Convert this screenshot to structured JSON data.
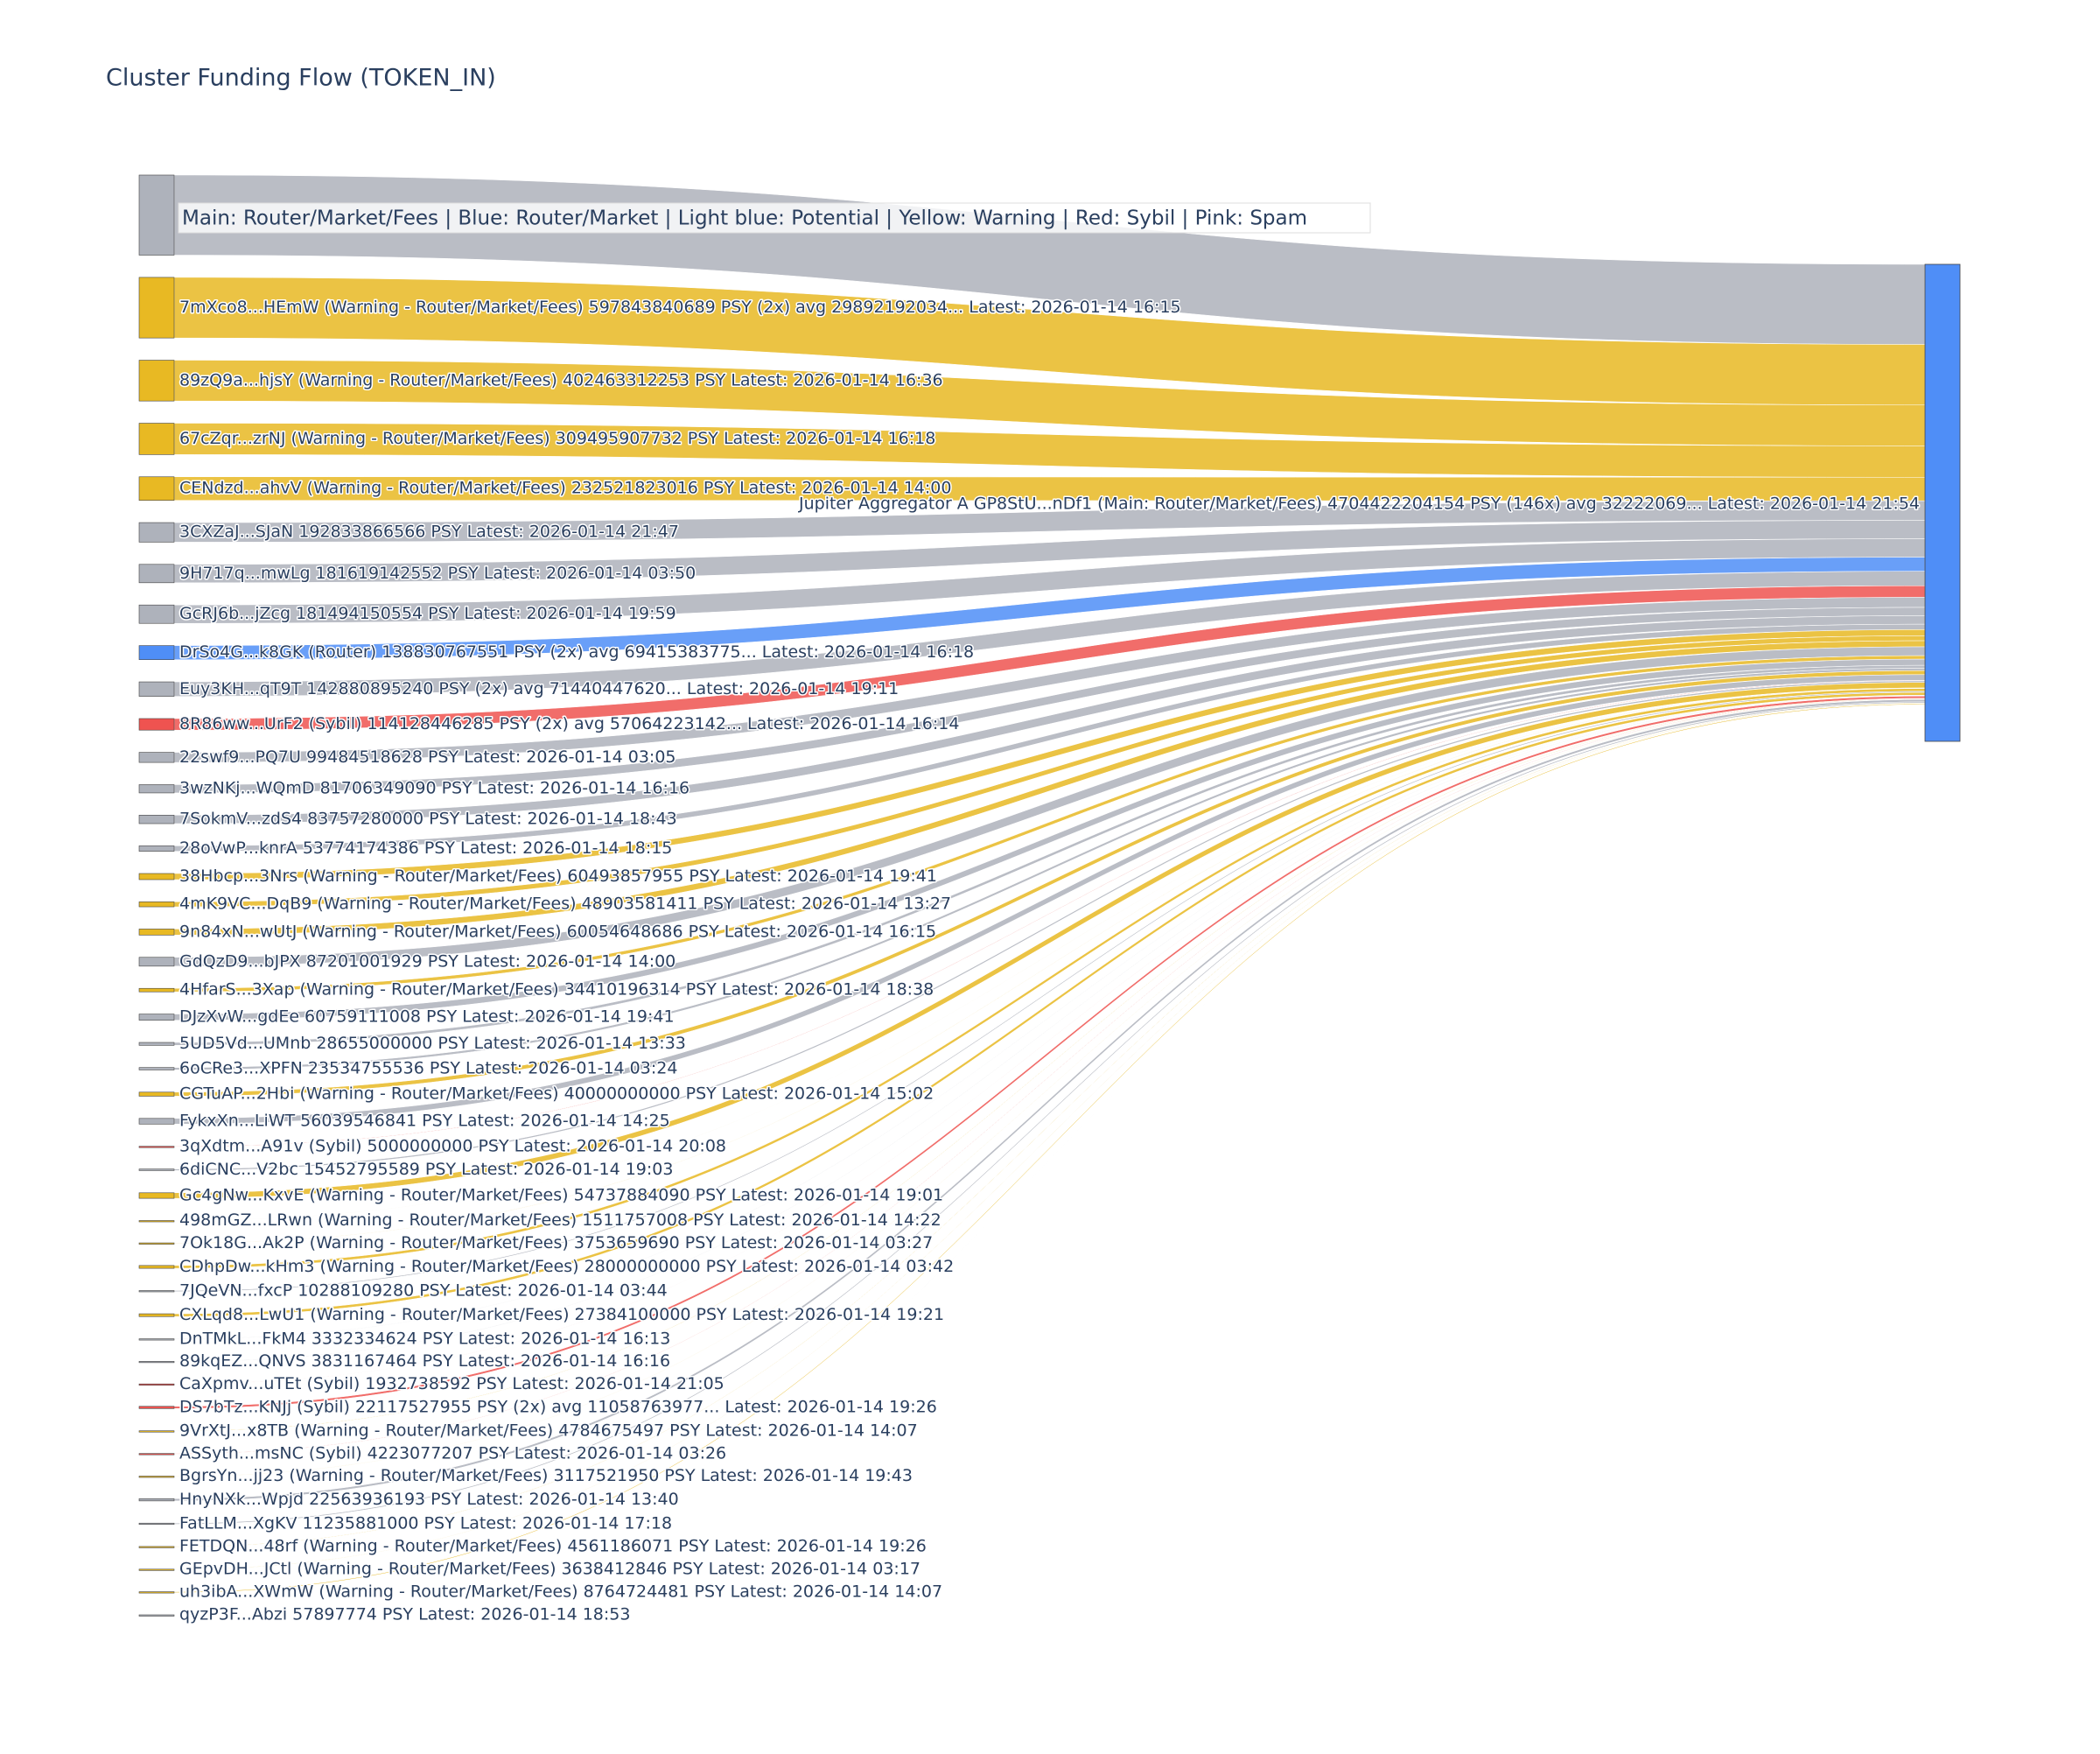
{
  "chart_data": {
    "type": "sankey",
    "title": "Cluster Funding Flow (TOKEN_IN)",
    "annotation": "Main: Router/Market/Fees | Blue: Router/Market | Light blue: Potential | Yellow: Warning | Red: Sybil | Pink: Spam",
    "target": {
      "label": "Jupiter Aggregator A GP8StU...nDf1 (Main: Router/Market/Fees) 4704422204154 PSY (146x) avg 32222069... Latest: 2026-01-14 21:54",
      "value": 4704422204154,
      "color": "#4f8ef7"
    },
    "nodes": [
      {
        "label": null,
        "value": 790000000000,
        "color": "#aeb2bb"
      },
      {
        "label": "7mXco8...HEmW (Warning - Router/Market/Fees) 597843840689 PSY (2x) avg 29892192034... Latest: 2026-01-14 16:15",
        "value": 597843840689,
        "color": "#e8b923"
      },
      {
        "label": "89zQ9a...hjsY (Warning - Router/Market/Fees) 402463312253 PSY Latest: 2026-01-14 16:36",
        "value": 402463312253,
        "color": "#e8b923"
      },
      {
        "label": "67cZqr...zrNJ (Warning - Router/Market/Fees) 309495907732 PSY Latest: 2026-01-14 16:18",
        "value": 309495907732,
        "color": "#e8b923"
      },
      {
        "label": "CENdzd...ahvV (Warning - Router/Market/Fees) 232521823016 PSY Latest: 2026-01-14 14:00",
        "value": 232521823016,
        "color": "#e8b923"
      },
      {
        "label": "3CXZaJ...SJaN 192833866566 PSY Latest: 2026-01-14 21:47",
        "value": 192833866566,
        "color": "#aeb2bb"
      },
      {
        "label": "9H717q...mwLg 181619142552 PSY Latest: 2026-01-14 03:50",
        "value": 181619142552,
        "color": "#aeb2bb"
      },
      {
        "label": "GcRJ6b...jZcg 181494150554 PSY Latest: 2026-01-14 19:59",
        "value": 181494150554,
        "color": "#aeb2bb"
      },
      {
        "label": "DrSo4G...k8GK (Router) 138830767551 PSY (2x) avg 69415383775... Latest: 2026-01-14 16:18",
        "value": 138830767551,
        "color": "#4f8ef7"
      },
      {
        "label": "Euy3KH...qT9T 142880895240 PSY (2x) avg 71440447620... Latest: 2026-01-14 19:11",
        "value": 142880895240,
        "color": "#aeb2bb"
      },
      {
        "label": "8R86ww...UrF2 (Sybil) 114128446285 PSY (2x) avg 57064223142... Latest: 2026-01-14 16:14",
        "value": 114128446285,
        "color": "#ef5350"
      },
      {
        "label": "22swf9...PQ7U 99484518628 PSY Latest: 2026-01-14 03:05",
        "value": 99484518628,
        "color": "#aeb2bb"
      },
      {
        "label": "3wzNKj...WQmD 81706349090 PSY Latest: 2026-01-14 16:16",
        "value": 81706349090,
        "color": "#aeb2bb"
      },
      {
        "label": "7SokmV...zdS4 83757280000 PSY Latest: 2026-01-14 18:43",
        "value": 83757280000,
        "color": "#aeb2bb"
      },
      {
        "label": "28oVwP...knrA 53774174386 PSY Latest: 2026-01-14 18:15",
        "value": 53774174386,
        "color": "#aeb2bb"
      },
      {
        "label": "38Hbcp...3Nrs (Warning - Router/Market/Fees) 60493857955 PSY Latest: 2026-01-14 19:41",
        "value": 60493857955,
        "color": "#e8b923"
      },
      {
        "label": "4mK9VC...DqB9 (Warning - Router/Market/Fees) 48903581411 PSY Latest: 2026-01-14 13:27",
        "value": 48903581411,
        "color": "#e8b923"
      },
      {
        "label": "9n84xN...wUtJ (Warning - Router/Market/Fees) 60054648686 PSY Latest: 2026-01-14 16:15",
        "value": 60054648686,
        "color": "#e8b923"
      },
      {
        "label": "GdQzD9...bJPX 87201001929 PSY Latest: 2026-01-14 14:00",
        "value": 87201001929,
        "color": "#aeb2bb"
      },
      {
        "label": "4HfarS...3Xap (Warning - Router/Market/Fees) 34410196314 PSY Latest: 2026-01-14 18:38",
        "value": 34410196314,
        "color": "#e8b923"
      },
      {
        "label": "DJzXvW...gdEe 60759111008 PSY Latest: 2026-01-14 19:41",
        "value": 60759111008,
        "color": "#aeb2bb"
      },
      {
        "label": "5UD5Vd...UMnb 28655000000 PSY Latest: 2026-01-14 13:33",
        "value": 28655000000,
        "color": "#aeb2bb"
      },
      {
        "label": "6oCRe3...XPFN 23534755536 PSY Latest: 2026-01-14 03:24",
        "value": 23534755536,
        "color": "#aeb2bb"
      },
      {
        "label": "CGTuAP...2Hbi (Warning - Router/Market/Fees) 40000000000 PSY Latest: 2026-01-14 15:02",
        "value": 40000000000,
        "color": "#e8b923"
      },
      {
        "label": "FykxXn...LiWT 56039546841 PSY Latest: 2026-01-14 14:25",
        "value": 56039546841,
        "color": "#aeb2bb"
      },
      {
        "label": "3qXdtm...A91v (Sybil) 5000000000 PSY Latest: 2026-01-14 20:08",
        "value": 5000000000,
        "color": "#ef5350"
      },
      {
        "label": "6diCNC...V2bc 15452795589 PSY Latest: 2026-01-14 19:03",
        "value": 15452795589,
        "color": "#aeb2bb"
      },
      {
        "label": "Gc4gNw...KxvE (Warning - Router/Market/Fees) 54737884090 PSY Latest: 2026-01-14 19:01",
        "value": 54737884090,
        "color": "#e8b923"
      },
      {
        "label": "498mGZ...LRwn (Warning - Router/Market/Fees) 1511757008 PSY Latest: 2026-01-14 14:22",
        "value": 1511757008,
        "color": "#e8b923"
      },
      {
        "label": "7Ok18G...Ak2P (Warning - Router/Market/Fees) 3753659690 PSY Latest: 2026-01-14 03:27",
        "value": 3753659690,
        "color": "#e8b923"
      },
      {
        "label": "CDhpDw...kHm3 (Warning - Router/Market/Fees) 28000000000 PSY Latest: 2026-01-14 03:42",
        "value": 28000000000,
        "color": "#e8b923"
      },
      {
        "label": "7JQeVN...fxcP 10288109280 PSY Latest: 2026-01-14 03:44",
        "value": 10288109280,
        "color": "#aeb2bb"
      },
      {
        "label": "CXLqd8...LwU1 (Warning - Router/Market/Fees) 27384100000 PSY Latest: 2026-01-14 19:21",
        "value": 27384100000,
        "color": "#e8b923"
      },
      {
        "label": "DnTMkL...FkM4 3332334624 PSY Latest: 2026-01-14 16:13",
        "value": 3332334624,
        "color": "#aeb2bb"
      },
      {
        "label": "89kqEZ...QNVS 3831167464 PSY Latest: 2026-01-14 16:16",
        "value": 3831167464,
        "color": "#aeb2bb"
      },
      {
        "label": "CaXpmv...uTEt (Sybil) 1932738592 PSY Latest: 2026-01-14 21:05",
        "value": 1932738592,
        "color": "#ef5350"
      },
      {
        "label": "DS7bTz...KNJj (Sybil) 22117527955 PSY (2x) avg 11058763977... Latest: 2026-01-14 19:26",
        "value": 22117527955,
        "color": "#ef5350"
      },
      {
        "label": "9VrXtJ...x8TB (Warning - Router/Market/Fees) 4784675497 PSY Latest: 2026-01-14 14:07",
        "value": 4784675497,
        "color": "#e8b923"
      },
      {
        "label": "ASSyth...msNC (Sybil) 4223077207 PSY Latest: 2026-01-14 03:26",
        "value": 4223077207,
        "color": "#ef5350"
      },
      {
        "label": "BgrsYn...jj23 (Warning - Router/Market/Fees) 3117521950 PSY Latest: 2026-01-14 19:43",
        "value": 3117521950,
        "color": "#e8b923"
      },
      {
        "label": "HnyNXk...Wpjd 22563936193 PSY Latest: 2026-01-14 13:40",
        "value": 22563936193,
        "color": "#aeb2bb"
      },
      {
        "label": "FatLLM...XgKV 11235881000 PSY Latest: 2026-01-14 17:18",
        "value": 11235881000,
        "color": "#aeb2bb"
      },
      {
        "label": "FETDQN...48rf (Warning - Router/Market/Fees) 4561186071 PSY Latest: 2026-01-14 19:26",
        "value": 4561186071,
        "color": "#e8b923"
      },
      {
        "label": "GEpvDH...JCtl (Warning - Router/Market/Fees) 3638412846 PSY Latest: 2026-01-14 03:17",
        "value": 3638412846,
        "color": "#e8b923"
      },
      {
        "label": "uh3ibA...XWmW (Warning - Router/Market/Fees) 8764724481 PSY Latest: 2026-01-14 14:07",
        "value": 8764724481,
        "color": "#e8b923"
      },
      {
        "label": "qyzP3F...Abzi 57897774 PSY Latest: 2026-01-14 18:53",
        "value": 57897774,
        "color": "#aeb2bb"
      }
    ]
  }
}
